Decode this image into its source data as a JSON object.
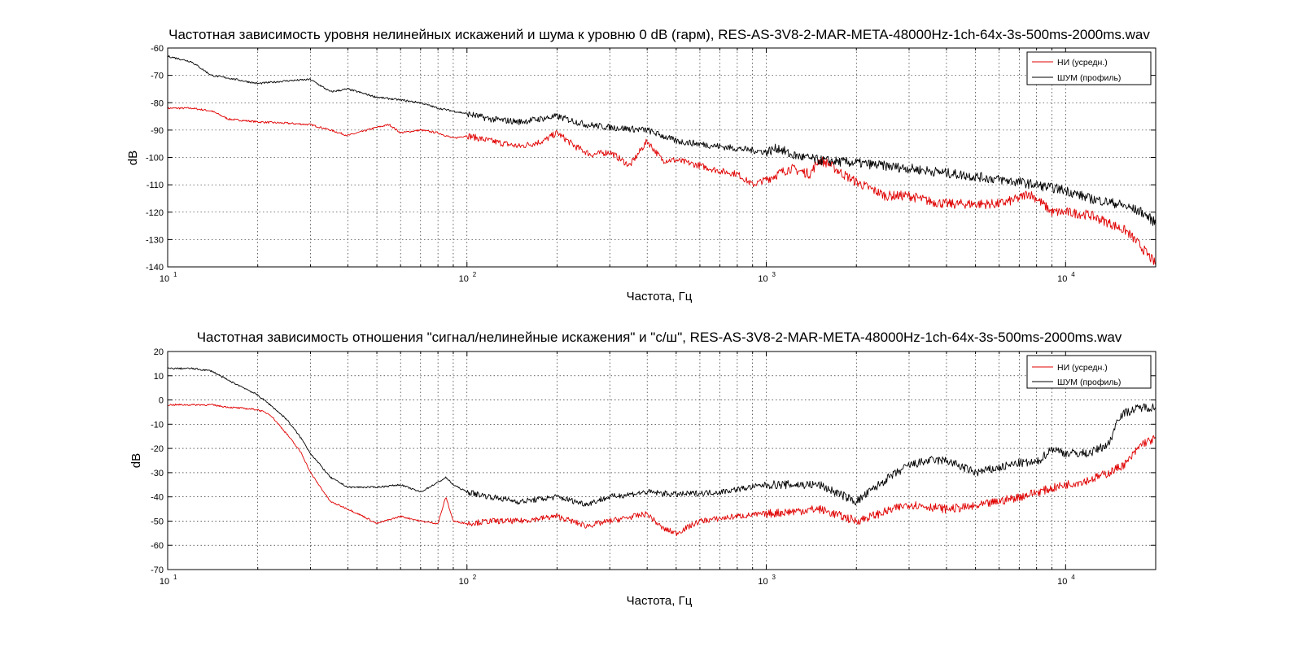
{
  "chart_data": [
    {
      "type": "line",
      "title": "Частотная зависимость уровня нелинейных искажений и шума к уровню 0 dB (гарм), RES-AS-3V8-2-MAR-META-48000Hz-1ch-64x-3s-500ms-2000ms.wav",
      "xlabel": "Частота, Гц",
      "ylabel": "dB",
      "xscale": "log",
      "xlim": [
        10,
        20000
      ],
      "ylim": [
        -140,
        -60
      ],
      "yticks": [
        -60,
        -70,
        -80,
        -90,
        -100,
        -110,
        -120,
        -130,
        -140
      ],
      "xticks": [
        "10^1",
        "10^2",
        "10^3",
        "10^4"
      ],
      "grid": true,
      "legend_position": "top-right",
      "series": [
        {
          "name": "НИ (усредн.)",
          "color": "#e00000",
          "x": [
            10,
            12,
            14,
            16,
            20,
            25,
            30,
            35,
            40,
            50,
            55,
            60,
            70,
            80,
            90,
            100,
            120,
            150,
            180,
            200,
            230,
            260,
            300,
            350,
            400,
            450,
            500,
            600,
            700,
            800,
            900,
            1000,
            1200,
            1400,
            1500,
            1600,
            1800,
            2000,
            2500,
            3000,
            3500,
            4000,
            5000,
            6000,
            7000,
            7500,
            8000,
            9000,
            10000,
            12000,
            14000,
            16000,
            18000,
            20000
          ],
          "values": [
            -82,
            -82,
            -83,
            -86,
            -87,
            -87.5,
            -88,
            -90,
            -92,
            -89,
            -88,
            -91,
            -90,
            -91,
            -93,
            -92,
            -94,
            -96,
            -94,
            -91,
            -96,
            -99,
            -98,
            -103,
            -94,
            -101,
            -101,
            -103,
            -105,
            -106,
            -110,
            -108,
            -104,
            -106,
            -101,
            -102,
            -106,
            -109,
            -114,
            -114,
            -116,
            -117,
            -117,
            -117,
            -115,
            -113,
            -115,
            -120,
            -120,
            -121,
            -124,
            -127,
            -133,
            -139
          ]
        },
        {
          "name": "ШУМ (профиль)",
          "color": "#000000",
          "x": [
            10,
            12,
            14,
            16,
            20,
            25,
            30,
            35,
            40,
            50,
            60,
            70,
            80,
            100,
            120,
            150,
            200,
            250,
            300,
            400,
            500,
            700,
            1000,
            1100,
            1200,
            1500,
            2000,
            3000,
            5000,
            7000,
            10000,
            12000,
            15000,
            18000,
            20000
          ],
          "values": [
            -63,
            -65,
            -70,
            -71,
            -73,
            -72,
            -71.5,
            -76,
            -75,
            -78,
            -79,
            -80,
            -82,
            -84,
            -86,
            -87,
            -85,
            -88,
            -89,
            -90,
            -94,
            -96,
            -98,
            -96.5,
            -99,
            -101,
            -102,
            -104,
            -107,
            -109,
            -112,
            -115,
            -117,
            -120,
            -124
          ]
        }
      ]
    },
    {
      "type": "line",
      "title": "Частотная зависимость отношения \"сигнал/нелинейные искажения\" и \"с/ш\", RES-AS-3V8-2-MAR-META-48000Hz-1ch-64x-3s-500ms-2000ms.wav",
      "xlabel": "Частота, Гц",
      "ylabel": "dB",
      "xscale": "log",
      "xlim": [
        10,
        20000
      ],
      "ylim": [
        -70,
        20
      ],
      "yticks": [
        20,
        10,
        0,
        -10,
        -20,
        -30,
        -40,
        -50,
        -60,
        -70
      ],
      "xticks": [
        "10^1",
        "10^2",
        "10^3",
        "10^4"
      ],
      "grid": true,
      "legend_position": "top-right",
      "series": [
        {
          "name": "НИ (усредн.)",
          "color": "#e00000",
          "x": [
            10,
            12,
            14,
            16,
            18,
            20,
            22,
            25,
            28,
            30,
            35,
            40,
            45,
            50,
            60,
            70,
            80,
            85,
            90,
            100,
            120,
            150,
            200,
            250,
            300,
            400,
            450,
            500,
            600,
            800,
            1000,
            1500,
            2000,
            3000,
            4000,
            5000,
            7000,
            10000,
            12000,
            14000,
            16000,
            18000,
            20000
          ],
          "values": [
            -2,
            -2,
            -2,
            -3,
            -3.5,
            -4,
            -6,
            -14,
            -22,
            -30,
            -42,
            -45,
            -48,
            -51,
            -48,
            -50,
            -51,
            -40,
            -50,
            -51,
            -50,
            -50,
            -48,
            -52,
            -50,
            -47,
            -53,
            -55,
            -50,
            -48,
            -47,
            -45,
            -50,
            -43,
            -45,
            -44,
            -40,
            -35,
            -33,
            -30,
            -26,
            -18,
            -16
          ]
        },
        {
          "name": "ШУМ (профиль)",
          "color": "#000000",
          "x": [
            10,
            12,
            14,
            16,
            18,
            20,
            22,
            25,
            28,
            30,
            35,
            40,
            50,
            60,
            70,
            80,
            85,
            90,
            100,
            120,
            150,
            200,
            250,
            300,
            400,
            500,
            700,
            1000,
            1500,
            2000,
            2500,
            3000,
            3500,
            4000,
            5000,
            6000,
            7000,
            8000,
            9000,
            10000,
            12000,
            14000,
            15000,
            16000,
            18000,
            20000
          ],
          "values": [
            13,
            13,
            12,
            8,
            5,
            2,
            -2,
            -8,
            -16,
            -22,
            -32,
            -36,
            -36,
            -35,
            -38,
            -34,
            -32,
            -35,
            -38,
            -40,
            -42,
            -40,
            -43,
            -40,
            -38,
            -39,
            -38,
            -35,
            -35,
            -42,
            -33,
            -27,
            -25,
            -25,
            -30,
            -28,
            -26,
            -26,
            -20,
            -22,
            -22,
            -18,
            -7,
            -5,
            -3,
            -3
          ]
        }
      ]
    }
  ]
}
